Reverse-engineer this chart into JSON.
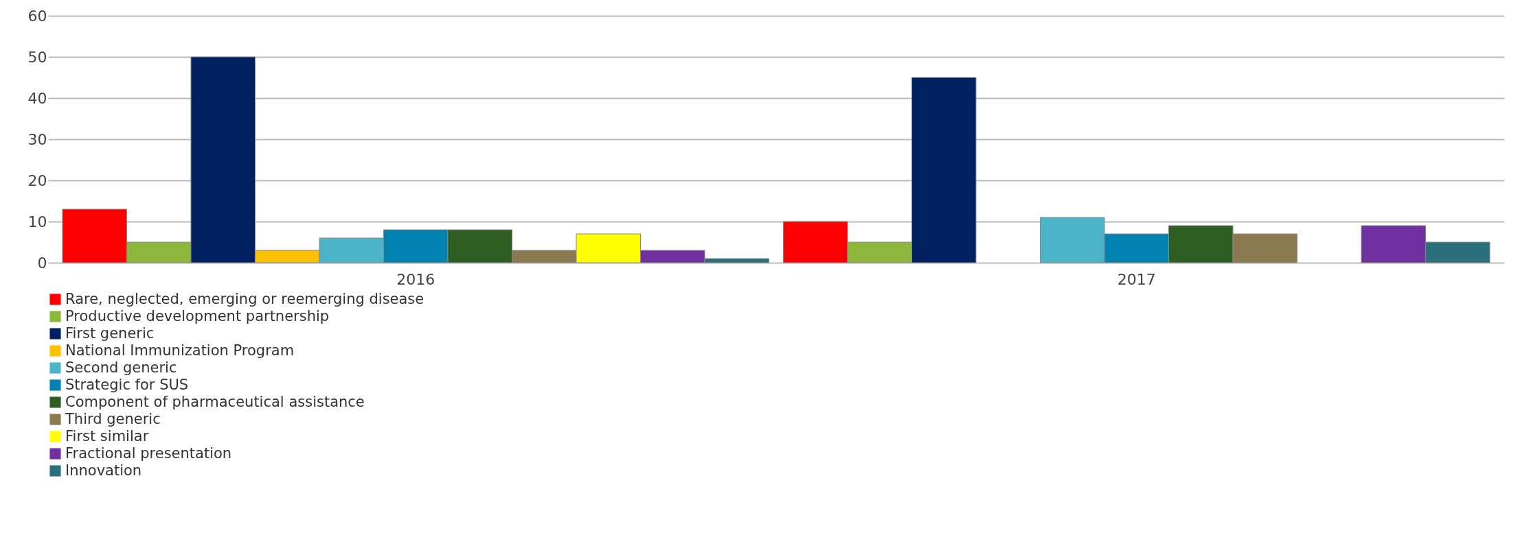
{
  "chart_data": {
    "type": "bar",
    "categories": [
      "2016",
      "2017"
    ],
    "series": [
      {
        "name": "Rare, neglected, emerging or reemerging disease",
        "color": "#ff0000",
        "values": [
          13,
          10
        ]
      },
      {
        "name": "Productive development partnership",
        "color": "#8db63c",
        "values": [
          5,
          5
        ]
      },
      {
        "name": "First generic",
        "color": "#002060",
        "values": [
          50,
          45
        ]
      },
      {
        "name": "National Immunization Program",
        "color": "#ffc000",
        "values": [
          3,
          null
        ]
      },
      {
        "name": "Second generic",
        "color": "#4bb4c8",
        "values": [
          6,
          11
        ]
      },
      {
        "name": "Strategic for SUS",
        "color": "#0083b0",
        "values": [
          8,
          7
        ]
      },
      {
        "name": "Component of pharmaceutical assistance",
        "color": "#2e5e22",
        "values": [
          8,
          9
        ]
      },
      {
        "name": "Third generic",
        "color": "#8b7a50",
        "values": [
          3,
          7
        ]
      },
      {
        "name": "First similar",
        "color": "#ffff00",
        "values": [
          7,
          null
        ]
      },
      {
        "name": "Fractional presentation",
        "color": "#7030a0",
        "values": [
          3,
          9
        ]
      },
      {
        "name": "Innovation",
        "color": "#2a6f7a",
        "values": [
          1,
          5
        ]
      }
    ],
    "ylim": [
      0,
      60
    ],
    "yticks": [
      0,
      10,
      20,
      30,
      40,
      50,
      60
    ],
    "grid": "y",
    "legend": "bottom"
  }
}
